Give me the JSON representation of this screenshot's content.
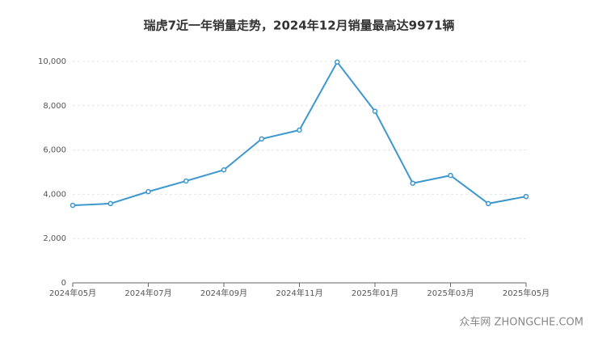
{
  "chart_data": {
    "type": "line",
    "title": "瑞虎7近一年销量走势，2024年12月销量最高达9971辆",
    "categories": [
      "2024年05月",
      null,
      "2024年07月",
      null,
      "2024年09月",
      null,
      "2024年11月",
      null,
      "2025年01月",
      null,
      "2025年03月",
      null,
      "2025年05月"
    ],
    "series": [
      {
        "name": "销量",
        "color": "#3c97cf",
        "values": [
          3500,
          3580,
          4120,
          4600,
          5100,
          6500,
          6900,
          9971,
          7750,
          4500,
          4850,
          3580,
          3900
        ]
      }
    ],
    "ylim": [
      0,
      10000
    ],
    "yticks": [
      0,
      {
        "value": 2000,
        "label": "2,000"
      },
      {
        "value": 4000,
        "label": "4,000"
      },
      {
        "value": 6000,
        "label": "6,000"
      },
      {
        "value": 8000,
        "label": "8,000"
      },
      {
        "value": 10000,
        "label": "10,000"
      }
    ],
    "grid": true,
    "watermark": "众车网 ZHONGCHE.COM"
  }
}
